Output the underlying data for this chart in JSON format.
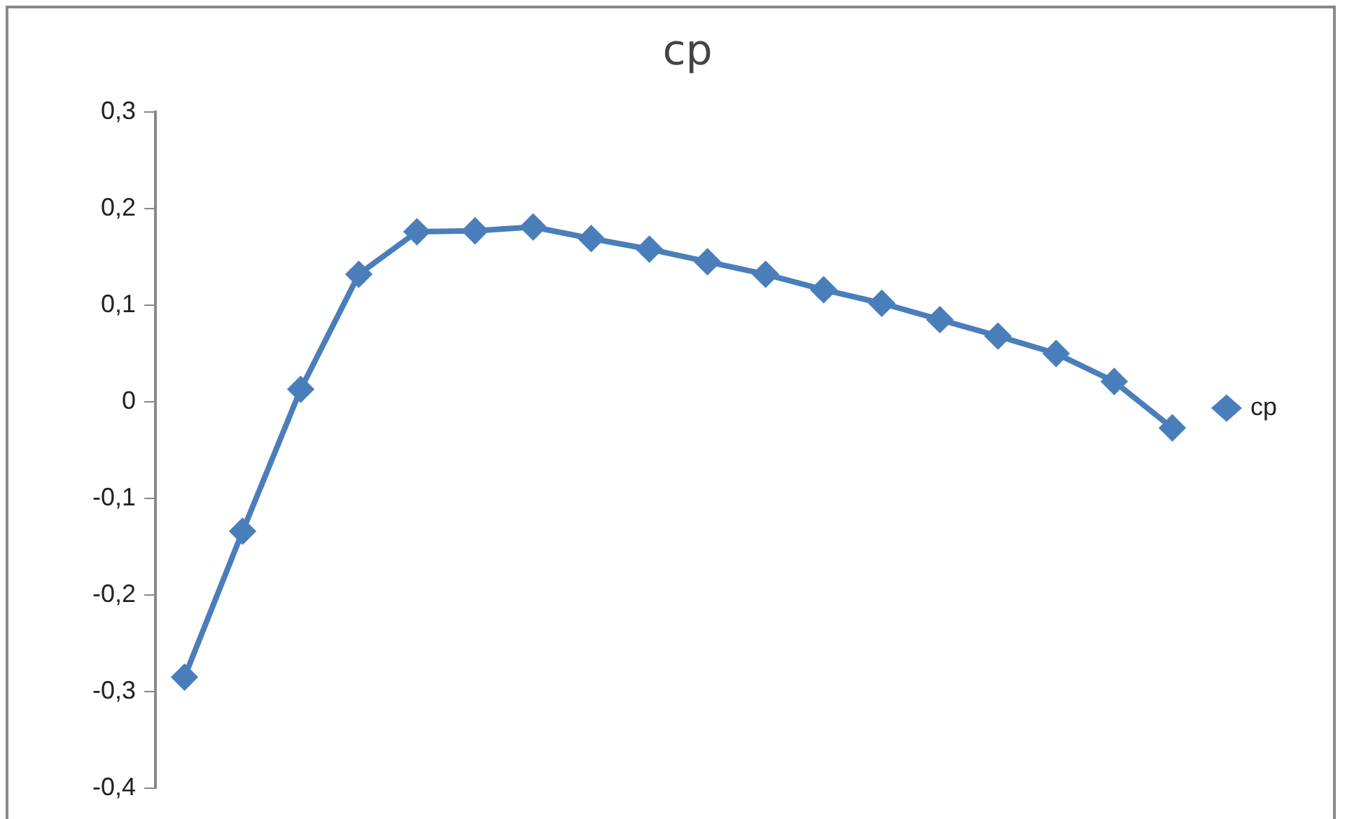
{
  "chart_data": {
    "type": "line",
    "title": "cp",
    "categories": [
      null,
      null,
      null,
      null,
      null,
      null,
      null,
      null,
      null,
      null,
      null,
      null,
      null,
      null,
      null,
      null,
      null,
      null
    ],
    "series": [
      {
        "name": "cp",
        "color": "#4a7ebb",
        "values": [
          -0.285,
          -0.134,
          0.013,
          0.132,
          0.176,
          0.177,
          0.181,
          0.169,
          0.158,
          0.145,
          0.132,
          0.116,
          0.102,
          0.085,
          0.068,
          0.05,
          0.021,
          -0.027
        ]
      }
    ],
    "ylim": [
      -0.4,
      0.3
    ],
    "yticks": [
      {
        "value": -0.4,
        "label": "-0,4"
      },
      {
        "value": -0.3,
        "label": "-0,3"
      },
      {
        "value": -0.2,
        "label": "-0,2"
      },
      {
        "value": -0.1,
        "label": "-0,1"
      },
      {
        "value": 0,
        "label": "0"
      },
      {
        "value": 0.1,
        "label": "0,1"
      },
      {
        "value": 0.2,
        "label": "0,2"
      },
      {
        "value": 0.3,
        "label": "0,3"
      }
    ],
    "tick_labels": "y",
    "grid": false,
    "legend": "right",
    "marker": "diamond",
    "line_style": "solid"
  }
}
